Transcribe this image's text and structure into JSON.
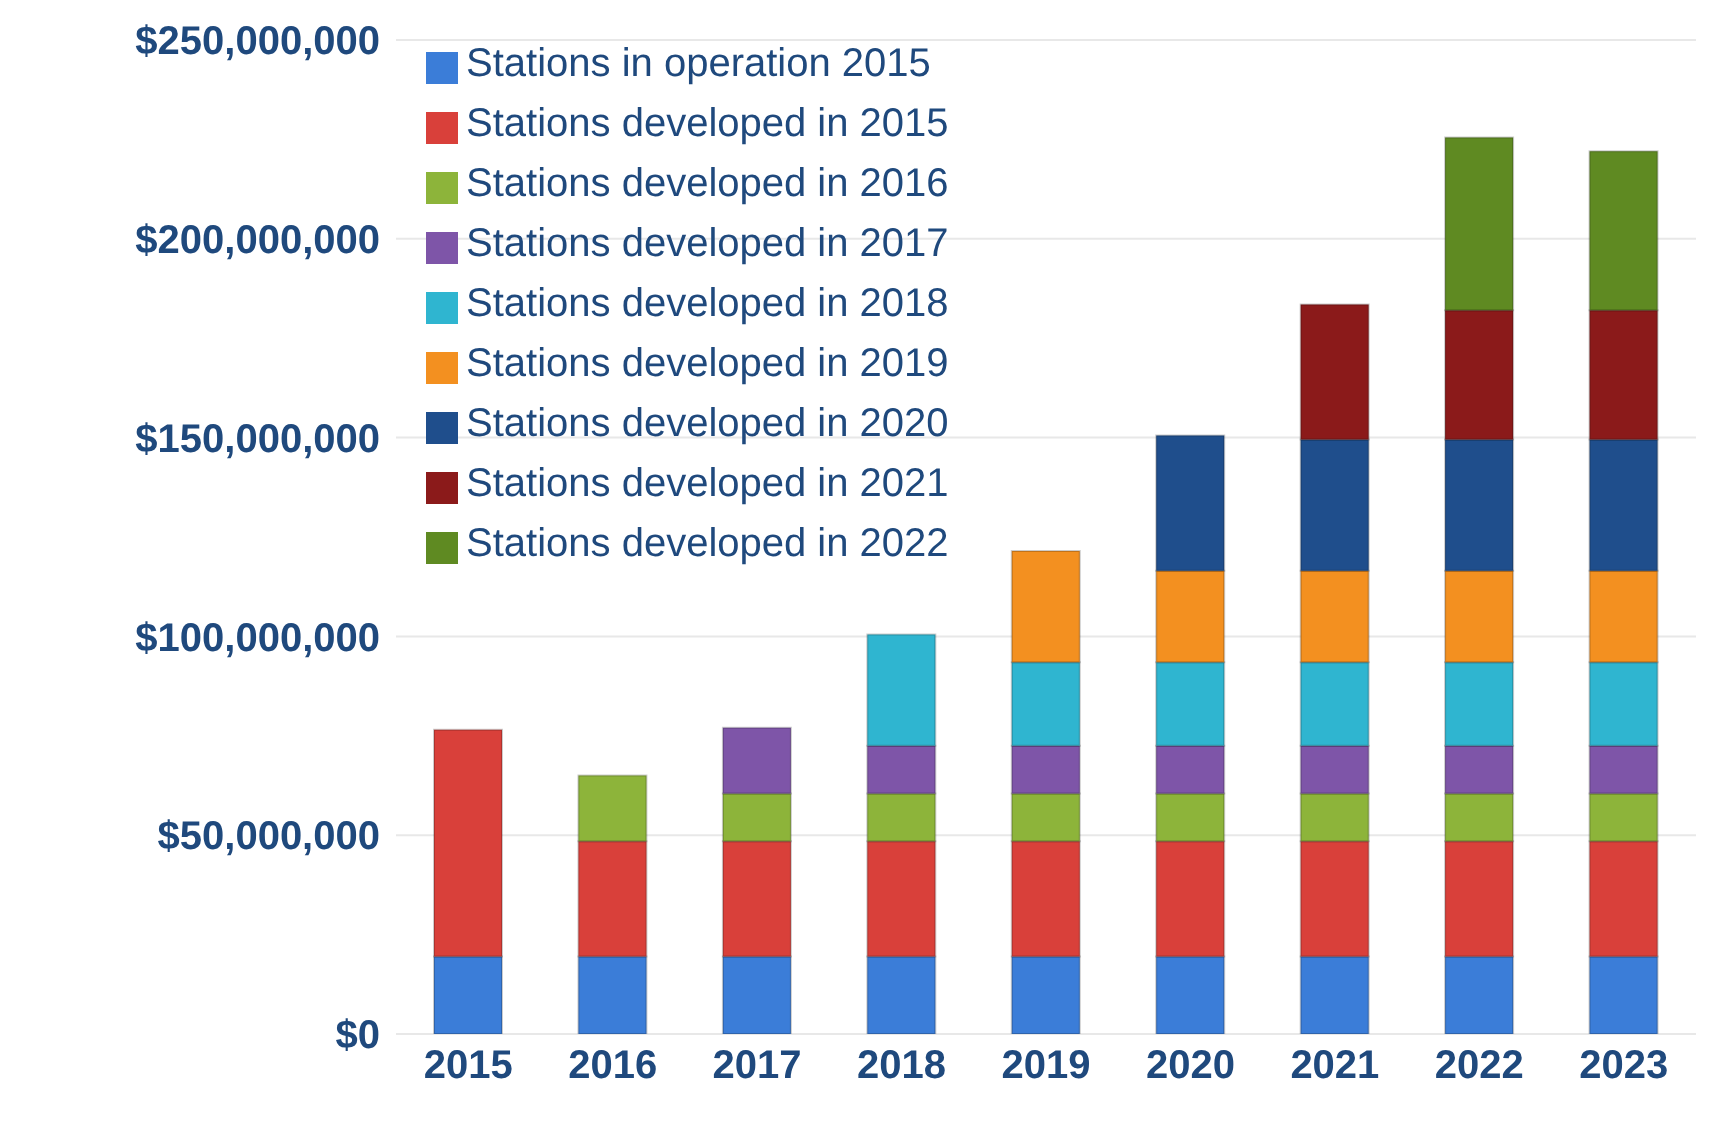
{
  "chart_data": {
    "type": "bar",
    "stacked": true,
    "categories": [
      "2015",
      "2016",
      "2017",
      "2018",
      "2019",
      "2020",
      "2021",
      "2022",
      "2023"
    ],
    "series": [
      {
        "name": "Stations in operation 2015",
        "color": "#3b7dd8",
        "values": [
          19500000,
          19500000,
          19500000,
          19500000,
          19500000,
          19500000,
          19500000,
          19500000,
          19500000
        ]
      },
      {
        "name": "Stations developed in 2015",
        "color": "#d9403a",
        "values": [
          57000000,
          29000000,
          29000000,
          29000000,
          29000000,
          29000000,
          29000000,
          29000000,
          29000000
        ]
      },
      {
        "name": "Stations developed in 2016",
        "color": "#8db43a",
        "values": [
          null,
          16500000,
          12000000,
          12000000,
          12000000,
          12000000,
          12000000,
          12000000,
          12000000
        ]
      },
      {
        "name": "Stations developed in 2017",
        "color": "#7e55a8",
        "values": [
          null,
          null,
          16500000,
          12000000,
          12000000,
          12000000,
          12000000,
          12000000,
          12000000
        ]
      },
      {
        "name": "Stations developed in 2018",
        "color": "#2fb5d0",
        "values": [
          null,
          null,
          null,
          28000000,
          21000000,
          21000000,
          21000000,
          21000000,
          21000000
        ]
      },
      {
        "name": "Stations developed in 2019",
        "color": "#f39020",
        "values": [
          null,
          null,
          null,
          null,
          28000000,
          23000000,
          23000000,
          23000000,
          23000000
        ]
      },
      {
        "name": "Stations developed in 2020",
        "color": "#1f4e8c",
        "values": [
          null,
          null,
          null,
          null,
          null,
          34000000,
          33000000,
          33000000,
          33000000
        ]
      },
      {
        "name": "Stations developed in 2021",
        "color": "#8b1a1a",
        "values": [
          null,
          null,
          null,
          null,
          null,
          null,
          34000000,
          32500000,
          32500000
        ]
      },
      {
        "name": "Stations developed in 2022",
        "color": "#5f8a22",
        "values": [
          null,
          null,
          null,
          null,
          null,
          null,
          null,
          43500000,
          40000000
        ]
      }
    ],
    "ylim": [
      0,
      250000000
    ],
    "yticks": [
      {
        "value": 0,
        "label": "$0"
      },
      {
        "value": 50000000,
        "label": "$50,000,000"
      },
      {
        "value": 100000000,
        "label": "$100,000,000"
      },
      {
        "value": 150000000,
        "label": "$150,000,000"
      },
      {
        "value": 200000000,
        "label": "$200,000,000"
      },
      {
        "value": 250000000,
        "label": "$250,000,000"
      }
    ],
    "grid": "y",
    "legend": "top left"
  }
}
